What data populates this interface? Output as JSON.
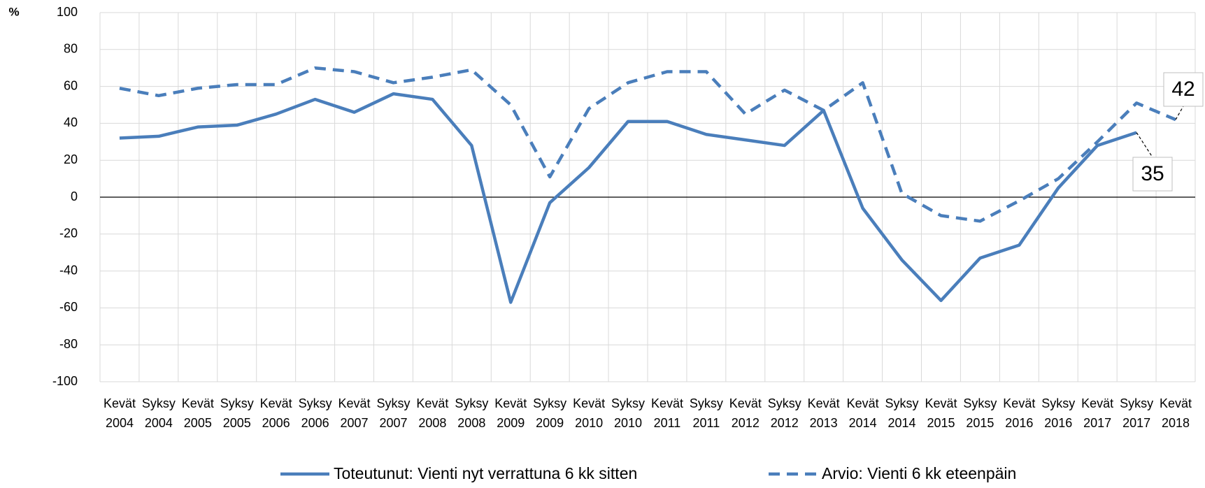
{
  "chart_data": {
    "type": "line",
    "y_label": "%",
    "categories": [
      "Kevät 2004",
      "Syksy 2004",
      "Kevät 2005",
      "Syksy 2005",
      "Kevät 2006",
      "Syksy 2006",
      "Kevät 2007",
      "Syksy 2007",
      "Kevät 2008",
      "Syksy 2008",
      "Kevät 2009",
      "Syksy 2009",
      "Kevät 2010",
      "Syksy 2010",
      "Kevät 2011",
      "Syksy 2011",
      "Kevät 2012",
      "Syksy 2012",
      "Kevät 2013",
      "Kevät 2014",
      "Syksy 2014",
      "Kevät 2015",
      "Syksy 2015",
      "Kevät 2016",
      "Syksy 2016",
      "Kevät 2017",
      "Syksy 2017",
      "Kevät 2018"
    ],
    "series": [
      {
        "name": "Toteutunut: Vienti nyt verrattuna 6 kk sitten",
        "color": "#4a7ebb",
        "dash": false,
        "values": [
          32,
          33,
          38,
          39,
          45,
          53,
          46,
          56,
          53,
          28,
          -57,
          -3,
          16,
          41,
          41,
          34,
          31,
          28,
          47,
          -6,
          -34,
          -56,
          -33,
          -26,
          5,
          28,
          35,
          null
        ]
      },
      {
        "name": "Arvio: Vienti 6 kk eteenpäin",
        "color": "#4a7ebb",
        "dash": true,
        "values": [
          59,
          55,
          59,
          61,
          61,
          70,
          68,
          62,
          65,
          69,
          50,
          11,
          48,
          62,
          68,
          68,
          45,
          58,
          47,
          62,
          2,
          -10,
          -13,
          -2,
          10,
          30,
          51,
          42
        ]
      }
    ],
    "ylim": [
      -100,
      100
    ],
    "yticks": [
      -100,
      -80,
      -60,
      -40,
      -20,
      0,
      20,
      40,
      60,
      80,
      100
    ],
    "grid": true
  }
}
